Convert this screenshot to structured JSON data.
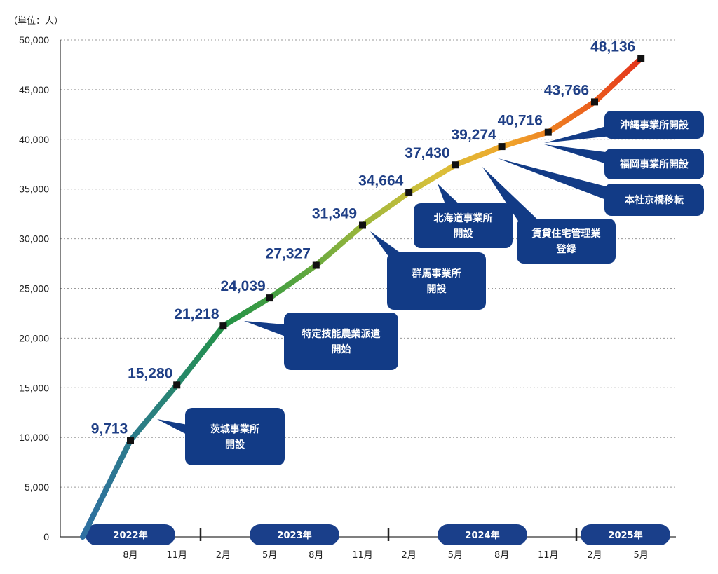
{
  "chart_data": {
    "type": "line",
    "unit_label": "（単位：人）",
    "y_ticks": [
      "0",
      "5,000",
      "10,000",
      "15,000",
      "20,000",
      "25,000",
      "30,000",
      "35,000",
      "40,000",
      "45,000",
      "50,000"
    ],
    "ylim": [
      0,
      50000
    ],
    "grid": true,
    "x_categories": [
      "8月",
      "11月",
      "2月",
      "5月",
      "8月",
      "11月",
      "2月",
      "5月",
      "8月",
      "11月",
      "2月",
      "5月"
    ],
    "years": [
      "2022年",
      "2023年",
      "2024年",
      "2025年"
    ],
    "start_value": 0,
    "values": [
      9713,
      15280,
      21218,
      24039,
      27327,
      31349,
      34664,
      37430,
      39274,
      40716,
      43766,
      48136
    ],
    "value_labels": [
      "9,713",
      "15,280",
      "21,218",
      "24,039",
      "27,327",
      "31,349",
      "34,664",
      "37,430",
      "39,274",
      "40,716",
      "43,766",
      "48,136"
    ],
    "line_colors": [
      "#2f6fa2",
      "#2a8080",
      "#229247",
      "#54a43f",
      "#9fb73c",
      "#d9c03a",
      "#f0a62c",
      "#ec6a1e",
      "#e32e1b"
    ],
    "annotations": [
      {
        "lines": [
          "茨城事業所",
          "開設"
        ]
      },
      {
        "lines": [
          "特定技能農業派遣",
          "開始"
        ]
      },
      {
        "lines": [
          "群馬事業所",
          "開設"
        ]
      },
      {
        "lines": [
          "北海道事業所",
          "開設"
        ]
      },
      {
        "lines": [
          "賃貸住宅管理業",
          "登録"
        ]
      },
      {
        "lines": [
          "沖縄事業所開設"
        ]
      },
      {
        "lines": [
          "福岡事業所開設"
        ]
      },
      {
        "lines": [
          "本社京橋移転"
        ]
      }
    ]
  }
}
